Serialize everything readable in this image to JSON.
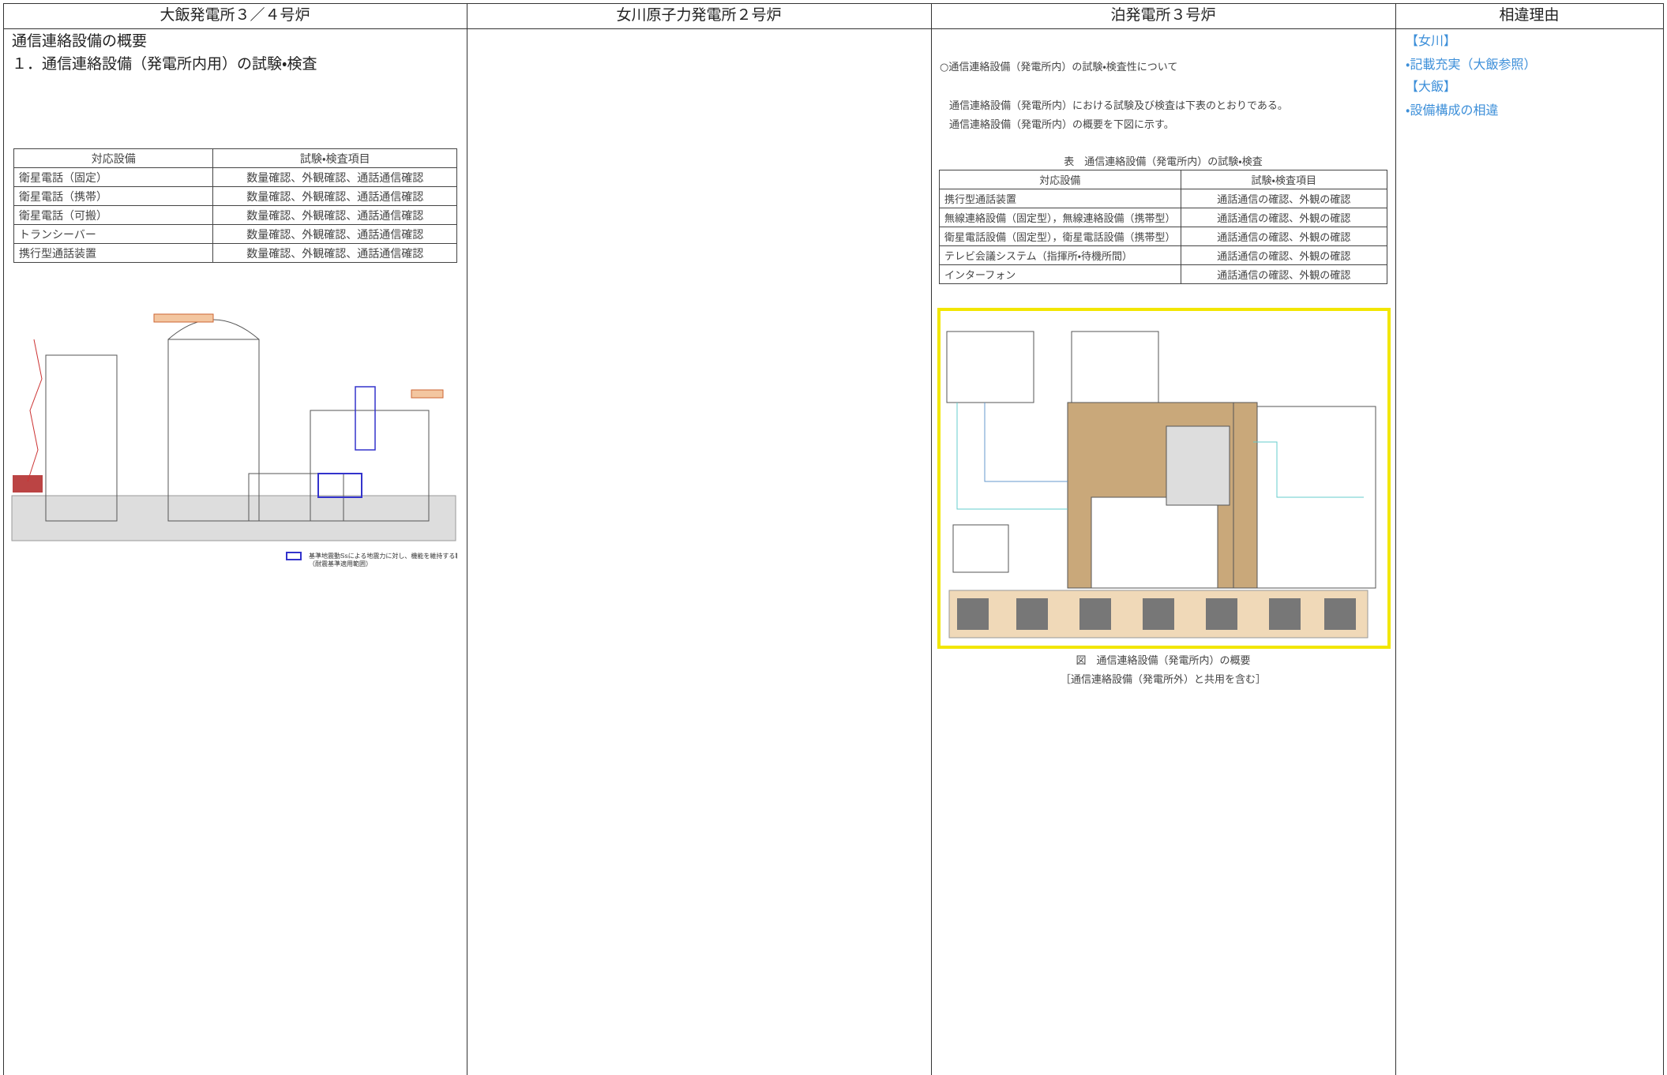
{
  "header": {
    "columns": [
      "大飯発電所３／４号炉",
      "女川原子力発電所２号炉",
      "泊発電所３号炉",
      "相違理由"
    ]
  },
  "ohi": {
    "title": "通信連絡設備の概要",
    "heading": "１．通信連絡設備（発電所内用）の試験・検査",
    "table": {
      "header": [
        "対応設備",
        "試験・検査項目"
      ],
      "rows": [
        [
          "衛星電話（固定）",
          "数量確認、外観確認、通話通信確認"
        ],
        [
          "衛星電話（携帯）",
          "数量確認、外観確認、通話通信確認"
        ],
        [
          "衛星電話（可搬）",
          "数量確認、外観確認、通話通信確認"
        ],
        [
          "トランシーバー",
          "数量確認、外観確認、通話通信確認"
        ],
        [
          "携行型通話装置",
          "数量確認、外観確認、通話通信確認"
        ]
      ]
    },
    "legend": [
      "基準地震動Ssによる地震力に対し、機能を維持する範囲",
      "（耐震基準適用範囲）"
    ]
  },
  "tomari": {
    "intro": "○通信連絡設備（発電所内）の試験・検査性について",
    "paragraphs": [
      "通信連絡設備（発電所内）における試験及び検査は下表のとおりである。",
      "通信連絡設備（発電所内）の概要を下図に示す。"
    ],
    "table_caption": "表　通信連絡設備（発電所内）の試験・検査",
    "table": {
      "header": [
        "対応設備",
        "試験・検査項目"
      ],
      "rows": [
        [
          "携行型通話装置",
          "通話通信の確認、外観の確認"
        ],
        [
          "無線連絡設備（固定型），無線連絡設備（携帯型）",
          "通話通信の確認、外観の確認"
        ],
        [
          "衛星電話設備（固定型），衛星電話設備（携帯型）",
          "通話通信の確認、外観の確認"
        ],
        [
          "テレビ会議システム（指揮所・待機所間）",
          "通話通信の確認、外観の確認"
        ],
        [
          "インターフォン",
          "通話通信の確認、外観の確認"
        ]
      ]
    },
    "figure_caption": [
      "図　通信連絡設備（発電所内）の概要",
      "［通信連絡設備（発電所外）と共用を含む］"
    ]
  },
  "reasons": [
    "【女川】",
    "・記載充実（大飯参照）",
    "【大飯】",
    "・設備構成の相違"
  ]
}
